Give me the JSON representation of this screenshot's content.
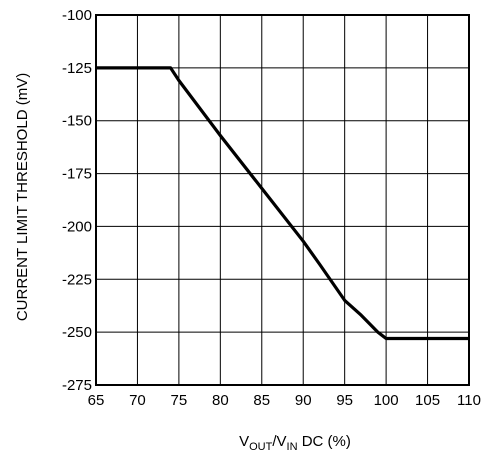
{
  "chart_data": {
    "type": "line",
    "title": "",
    "xlabel": {
      "main1": "V",
      "sub1": "OUT",
      "slash": "/V",
      "sub2": "IN",
      "rest": " DC (%)"
    },
    "ylabel": "CURRENT LIMIT THRESHOLD (mV)",
    "xlim": [
      65,
      110
    ],
    "ylim": [
      -275,
      -100
    ],
    "x_ticks": [
      65,
      70,
      75,
      80,
      85,
      90,
      95,
      100,
      105,
      110
    ],
    "y_ticks": [
      -100,
      -125,
      -150,
      -175,
      -200,
      -225,
      -250,
      -275
    ],
    "grid": true,
    "series": [
      {
        "color": "#000000",
        "x": [
          65,
          74,
          75,
          80,
          85,
          90,
          92,
          95,
          97,
          99,
          100,
          110
        ],
        "y": [
          -125,
          -125,
          -131,
          -157,
          -182,
          -207,
          -218,
          -235,
          -242,
          -250,
          -253,
          -253
        ]
      }
    ]
  }
}
